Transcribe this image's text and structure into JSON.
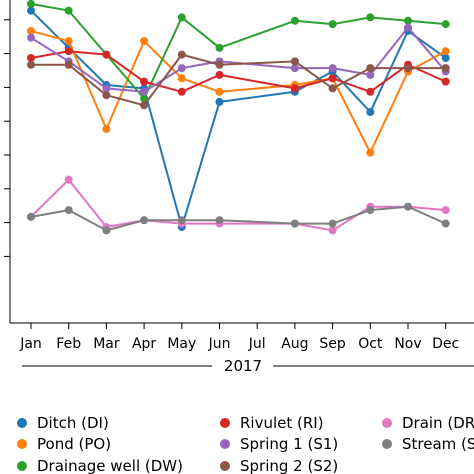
{
  "chart_data": {
    "type": "line",
    "categories": [
      "Jan",
      "Feb",
      "Mar",
      "Apr",
      "May",
      "Jun",
      "Jul",
      "Aug",
      "Sep",
      "Oct",
      "Nov",
      "Dec"
    ],
    "xlabel": "2017",
    "ylabel": "",
    "title": "",
    "grid": false,
    "legend_position": "bottom",
    "series": [
      {
        "name": "Ditch (DI)",
        "color": "#1f77b4",
        "values": [
          9.3,
          8.2,
          7.1,
          7.0,
          2.9,
          6.6,
          null,
          6.9,
          7.5,
          6.3,
          8.7,
          7.9
        ]
      },
      {
        "name": "Pond (PO)",
        "color": "#ff7f0e",
        "values": [
          8.7,
          8.4,
          5.8,
          8.4,
          7.3,
          6.9,
          null,
          7.1,
          7.3,
          5.1,
          7.5,
          8.1
        ]
      },
      {
        "name": "Drainage well (DW)",
        "color": "#2ca02c",
        "values": [
          9.5,
          9.3,
          8.0,
          6.7,
          9.1,
          8.2,
          null,
          9.0,
          8.9,
          9.1,
          9.0,
          8.9
        ]
      },
      {
        "name": "Rivulet (RI)",
        "color": "#d62728",
        "values": [
          7.9,
          8.1,
          8.0,
          7.2,
          6.9,
          7.4,
          null,
          7.0,
          7.3,
          6.9,
          7.7,
          7.2
        ]
      },
      {
        "name": "Spring 1 (S1)",
        "color": "#9467bd",
        "values": [
          8.5,
          7.8,
          7.0,
          6.9,
          7.6,
          7.8,
          null,
          7.6,
          7.6,
          7.4,
          8.8,
          7.5
        ]
      },
      {
        "name": "Spring 2 (S2)",
        "color": "#8c564b",
        "values": [
          7.7,
          7.7,
          6.8,
          6.5,
          8.0,
          7.7,
          null,
          7.8,
          7.0,
          7.6,
          7.6,
          7.6
        ]
      },
      {
        "name": "Drain (DR)",
        "color": "#e377c2",
        "values": [
          3.2,
          4.3,
          2.9,
          3.1,
          3.0,
          3.0,
          null,
          3.0,
          2.8,
          3.5,
          3.5,
          3.4
        ]
      },
      {
        "name": "Stream (S)",
        "color": "#7f7f7f",
        "values": [
          3.2,
          3.4,
          2.8,
          3.1,
          3.1,
          3.1,
          null,
          3.0,
          3.0,
          3.4,
          3.5,
          3.0
        ]
      }
    ]
  }
}
